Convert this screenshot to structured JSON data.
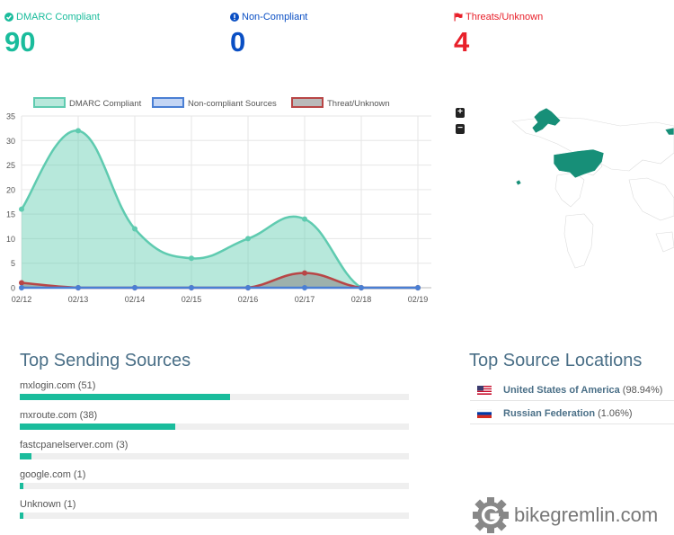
{
  "stats": [
    {
      "label": "DMARC Compliant",
      "value": "90",
      "color": "#1abc9c",
      "icon": "check-circle-icon"
    },
    {
      "label": "Non-Compliant",
      "value": "0",
      "color": "#0a4fc4",
      "icon": "info-circle-icon"
    },
    {
      "label": "Threats/Unknown",
      "value": "4",
      "color": "#e8202a",
      "icon": "flag-icon"
    }
  ],
  "chart_data": {
    "type": "line",
    "categories": [
      "02/12",
      "02/13",
      "02/14",
      "02/15",
      "02/16",
      "02/17",
      "02/18",
      "02/19"
    ],
    "series": [
      {
        "name": "DMARC Compliant",
        "values": [
          16,
          32,
          12,
          6,
          10,
          14,
          0,
          0
        ],
        "color": "#5fcbb0",
        "fill": "rgba(95,203,176,0.45)"
      },
      {
        "name": "Non-compliant Sources",
        "values": [
          0,
          0,
          0,
          0,
          0,
          0,
          0,
          0
        ],
        "color": "#4a7fd4",
        "fill": "rgba(170,195,240,0.7)"
      },
      {
        "name": "Threat/Unknown",
        "values": [
          1,
          0,
          0,
          0,
          0,
          3,
          0,
          0
        ],
        "color": "#b84646",
        "fill": "rgba(140,140,140,0.6)"
      }
    ],
    "ylim": [
      0,
      35
    ],
    "yticks": [
      "0",
      "5",
      "10",
      "15",
      "20",
      "25",
      "30",
      "35"
    ],
    "legend": "top",
    "grid": true
  },
  "map": {
    "zoom_in": "+",
    "zoom_out": "−"
  },
  "sending_sources": {
    "title": "Top Sending Sources",
    "items": [
      {
        "label": "mxlogin.com (51)",
        "share": 0.541
      },
      {
        "label": "mxroute.com (38)",
        "share": 0.4
      },
      {
        "label": "fastcpanelserver.com (3)",
        "share": 0.03
      },
      {
        "label": "google.com (1)",
        "share": 0.01
      },
      {
        "label": "Unknown (1)",
        "share": 0.01
      }
    ]
  },
  "source_locations": {
    "title": "Top Source Locations",
    "items": [
      {
        "name": "United States of America",
        "pct": "(98.94%)",
        "flag": "us-flag-icon"
      },
      {
        "name": "Russian Federation",
        "pct": "(1.06%)",
        "flag": "ru-flag-icon"
      }
    ]
  },
  "brand": {
    "text": "bikegremlin.com",
    "icon": "gear-g-logo-icon"
  }
}
